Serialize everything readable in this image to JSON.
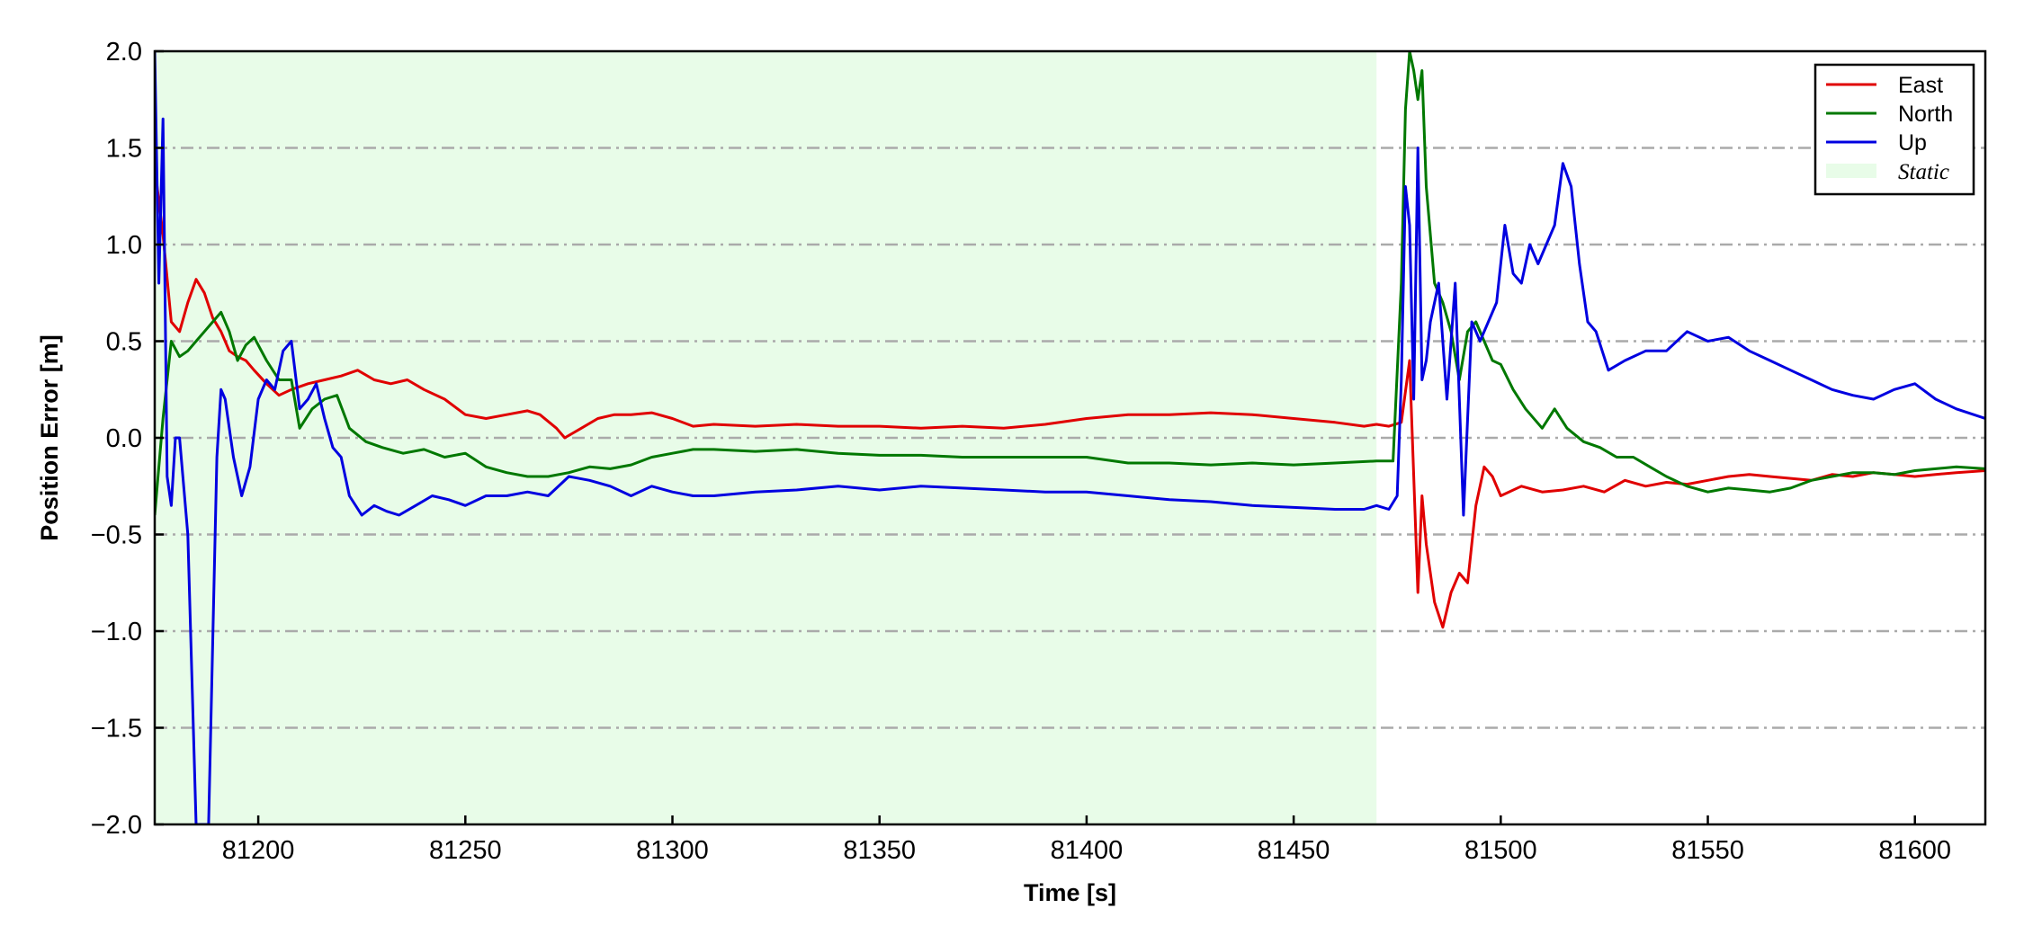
{
  "chart_data": {
    "type": "line",
    "title": "",
    "xlabel": "Time [s]",
    "ylabel": "Position Error [m]",
    "xlim": [
      81175,
      81617
    ],
    "ylim": [
      -2.0,
      2.0
    ],
    "xticks": [
      81200,
      81250,
      81300,
      81350,
      81400,
      81450,
      81500,
      81550,
      81600
    ],
    "xtick_labels": [
      "81200",
      "81250",
      "81300",
      "81350",
      "81400",
      "81450",
      "81500",
      "81550",
      "81600"
    ],
    "yticks": [
      -2.0,
      -1.5,
      -1.0,
      -0.5,
      0.0,
      0.5,
      1.0,
      1.5,
      2.0
    ],
    "ytick_labels": [
      "−2.0",
      "−1.5",
      "−1.0",
      "−0.5",
      "0.0",
      "0.5",
      "1.0",
      "1.5",
      "2.0"
    ],
    "grid": "horizontal dash-dot",
    "legend_position": "top-right",
    "shaded_regions": [
      {
        "name": "Static",
        "x_start": 81175,
        "x_end": 81470,
        "color": "#e8fce8"
      }
    ],
    "series": [
      {
        "name": "East",
        "color": "#e00000",
        "x": [
          81175,
          81177,
          81179,
          81181,
          81183,
          81185,
          81187,
          81189,
          81191,
          81193,
          81195,
          81197,
          81199,
          81202,
          81205,
          81208,
          81212,
          81216,
          81220,
          81224,
          81228,
          81232,
          81236,
          81240,
          81245,
          81250,
          81255,
          81260,
          81265,
          81268,
          81272,
          81274,
          81278,
          81282,
          81286,
          81290,
          81295,
          81300,
          81305,
          81310,
          81320,
          81330,
          81340,
          81350,
          81360,
          81370,
          81380,
          81390,
          81400,
          81410,
          81420,
          81430,
          81440,
          81450,
          81460,
          81467,
          81470,
          81473,
          81476,
          81478,
          81480,
          81481,
          81482,
          81484,
          81486,
          81488,
          81490,
          81492,
          81493,
          81494,
          81496,
          81498,
          81500,
          81505,
          81510,
          81515,
          81520,
          81525,
          81530,
          81535,
          81540,
          81545,
          81550,
          81555,
          81560,
          81565,
          81570,
          81575,
          81580,
          81585,
          81590,
          81595,
          81600,
          81605,
          81610,
          81617
        ],
        "values": [
          1.4,
          1.05,
          0.6,
          0.55,
          0.7,
          0.82,
          0.75,
          0.62,
          0.55,
          0.45,
          0.42,
          0.4,
          0.35,
          0.28,
          0.22,
          0.25,
          0.28,
          0.3,
          0.32,
          0.35,
          0.3,
          0.28,
          0.3,
          0.25,
          0.2,
          0.12,
          0.1,
          0.12,
          0.14,
          0.12,
          0.05,
          0.0,
          0.05,
          0.1,
          0.12,
          0.12,
          0.13,
          0.1,
          0.06,
          0.07,
          0.06,
          0.07,
          0.06,
          0.06,
          0.05,
          0.06,
          0.05,
          0.07,
          0.1,
          0.12,
          0.12,
          0.13,
          0.12,
          0.1,
          0.08,
          0.06,
          0.07,
          0.06,
          0.08,
          0.4,
          -0.8,
          -0.3,
          -0.55,
          -0.85,
          -0.98,
          -0.8,
          -0.7,
          -0.75,
          -0.55,
          -0.35,
          -0.15,
          -0.2,
          -0.3,
          -0.25,
          -0.28,
          -0.27,
          -0.25,
          -0.28,
          -0.22,
          -0.25,
          -0.23,
          -0.24,
          -0.22,
          -0.2,
          -0.19,
          -0.2,
          -0.21,
          -0.22,
          -0.19,
          -0.2,
          -0.18,
          -0.19,
          -0.2,
          -0.19,
          -0.18,
          -0.17
        ]
      },
      {
        "name": "North",
        "color": "#007800",
        "x": [
          81175,
          81177,
          81179,
          81181,
          81183,
          81185,
          81187,
          81189,
          81191,
          81193,
          81195,
          81197,
          81199,
          81202,
          81205,
          81208,
          81210,
          81213,
          81216,
          81219,
          81222,
          81226,
          81230,
          81235,
          81240,
          81245,
          81250,
          81255,
          81260,
          81265,
          81270,
          81275,
          81280,
          81285,
          81290,
          81295,
          81300,
          81305,
          81310,
          81320,
          81330,
          81340,
          81350,
          81360,
          81370,
          81380,
          81390,
          81400,
          81410,
          81420,
          81430,
          81440,
          81450,
          81460,
          81470,
          81474,
          81476,
          81477,
          81478,
          81479,
          81480,
          81481,
          81482,
          81484,
          81486,
          81488,
          81490,
          81492,
          81494,
          81496,
          81498,
          81500,
          81503,
          81506,
          81510,
          81513,
          81516,
          81520,
          81524,
          81528,
          81532,
          81536,
          81540,
          81545,
          81550,
          81555,
          81560,
          81565,
          81570,
          81575,
          81580,
          81585,
          81590,
          81595,
          81600,
          81605,
          81610,
          81617
        ],
        "values": [
          -0.4,
          0.1,
          0.5,
          0.42,
          0.45,
          0.5,
          0.55,
          0.6,
          0.65,
          0.55,
          0.4,
          0.48,
          0.52,
          0.4,
          0.3,
          0.3,
          0.05,
          0.15,
          0.2,
          0.22,
          0.05,
          -0.02,
          -0.05,
          -0.08,
          -0.06,
          -0.1,
          -0.08,
          -0.15,
          -0.18,
          -0.2,
          -0.2,
          -0.18,
          -0.15,
          -0.16,
          -0.14,
          -0.1,
          -0.08,
          -0.06,
          -0.06,
          -0.07,
          -0.06,
          -0.08,
          -0.09,
          -0.09,
          -0.1,
          -0.1,
          -0.1,
          -0.1,
          -0.13,
          -0.13,
          -0.14,
          -0.13,
          -0.14,
          -0.13,
          -0.12,
          -0.12,
          0.8,
          1.7,
          2.0,
          1.9,
          1.75,
          1.9,
          1.3,
          0.8,
          0.7,
          0.55,
          0.3,
          0.55,
          0.6,
          0.5,
          0.4,
          0.38,
          0.25,
          0.15,
          0.05,
          0.15,
          0.05,
          -0.02,
          -0.05,
          -0.1,
          -0.1,
          -0.15,
          -0.2,
          -0.25,
          -0.28,
          -0.26,
          -0.27,
          -0.28,
          -0.26,
          -0.22,
          -0.2,
          -0.18,
          -0.18,
          -0.19,
          -0.17,
          -0.16,
          -0.15,
          -0.16
        ]
      },
      {
        "name": "Up",
        "color": "#0000e0",
        "x": [
          81175,
          81176,
          81177,
          81178,
          81179,
          81180,
          81181,
          81183,
          81185,
          81187,
          81188,
          81190,
          81191,
          81192,
          81194,
          81196,
          81198,
          81200,
          81202,
          81204,
          81206,
          81208,
          81210,
          81212,
          81214,
          81216,
          81218,
          81220,
          81222,
          81225,
          81228,
          81231,
          81234,
          81238,
          81242,
          81246,
          81250,
          81255,
          81260,
          81265,
          81270,
          81275,
          81280,
          81285,
          81290,
          81295,
          81300,
          81305,
          81310,
          81320,
          81330,
          81340,
          81350,
          81360,
          81370,
          81380,
          81390,
          81400,
          81410,
          81420,
          81430,
          81440,
          81450,
          81460,
          81467,
          81470,
          81473,
          81475,
          81476,
          81477,
          81478,
          81479,
          81480,
          81481,
          81482,
          81483,
          81485,
          81487,
          81489,
          81491,
          81493,
          81495,
          81497,
          81499,
          81501,
          81503,
          81505,
          81507,
          81509,
          81511,
          81513,
          81515,
          81517,
          81519,
          81521,
          81523,
          81526,
          81530,
          81535,
          81540,
          81545,
          81550,
          81555,
          81560,
          81565,
          81570,
          81575,
          81580,
          81585,
          81590,
          81595,
          81600,
          81605,
          81610,
          81617
        ],
        "values": [
          2.0,
          0.8,
          1.65,
          -0.2,
          -0.35,
          0.0,
          0.0,
          -0.5,
          -2.0,
          -2.0,
          -2.0,
          -0.1,
          0.25,
          0.2,
          -0.1,
          -0.3,
          -0.15,
          0.2,
          0.3,
          0.25,
          0.45,
          0.5,
          0.15,
          0.2,
          0.28,
          0.1,
          -0.05,
          -0.1,
          -0.3,
          -0.4,
          -0.35,
          -0.38,
          -0.4,
          -0.35,
          -0.3,
          -0.32,
          -0.35,
          -0.3,
          -0.3,
          -0.28,
          -0.3,
          -0.2,
          -0.22,
          -0.25,
          -0.3,
          -0.25,
          -0.28,
          -0.3,
          -0.3,
          -0.28,
          -0.27,
          -0.25,
          -0.27,
          -0.25,
          -0.26,
          -0.27,
          -0.28,
          -0.28,
          -0.3,
          -0.32,
          -0.33,
          -0.35,
          -0.36,
          -0.37,
          -0.37,
          -0.35,
          -0.37,
          -0.3,
          0.3,
          1.3,
          1.1,
          0.2,
          1.5,
          0.3,
          0.4,
          0.6,
          0.8,
          0.2,
          0.8,
          -0.4,
          0.6,
          0.5,
          0.6,
          0.7,
          1.1,
          0.85,
          0.8,
          1.0,
          0.9,
          1.0,
          1.1,
          1.42,
          1.3,
          0.9,
          0.6,
          0.55,
          0.35,
          0.4,
          0.45,
          0.45,
          0.55,
          0.5,
          0.52,
          0.45,
          0.4,
          0.35,
          0.3,
          0.25,
          0.22,
          0.2,
          0.25,
          0.28,
          0.2,
          0.15,
          0.1
        ]
      }
    ],
    "legend_entries": [
      "East",
      "North",
      "Up",
      "Static"
    ]
  }
}
